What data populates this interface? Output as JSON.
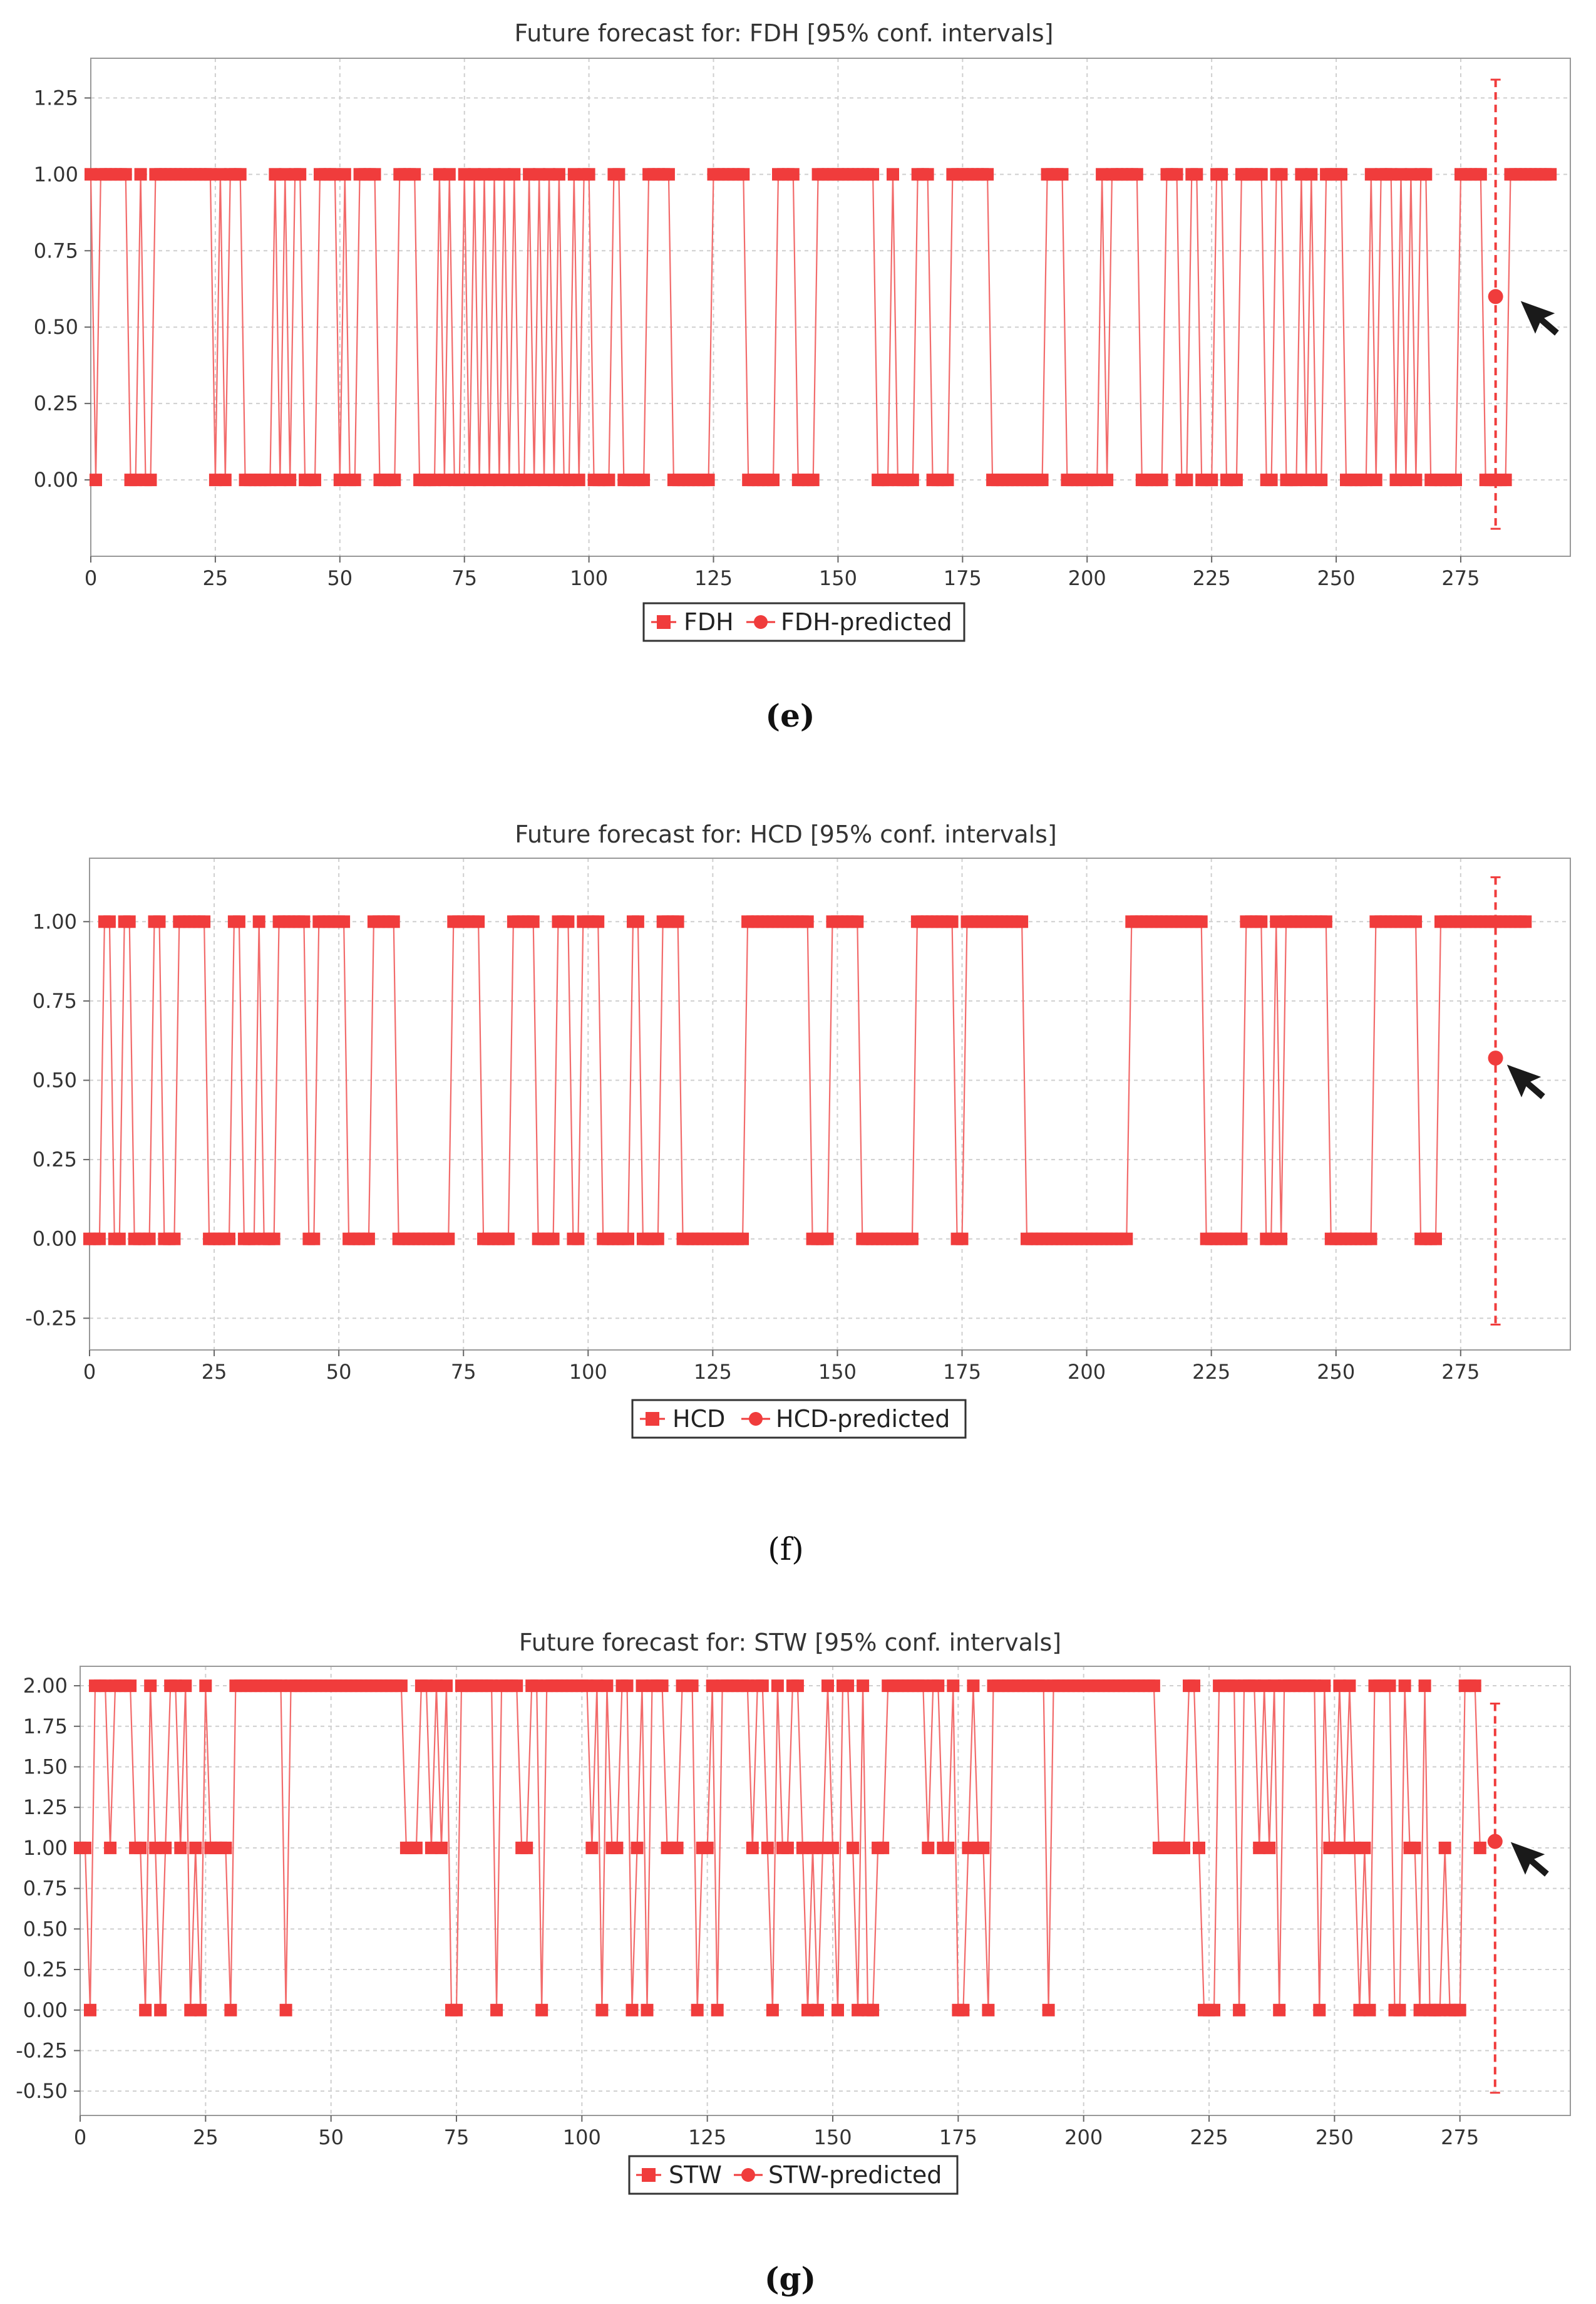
{
  "colors": {
    "series": "#f03c3c",
    "series_line": "#f26a6a",
    "grid": "#cfcfcf",
    "axis": "#666666",
    "text": "#333333",
    "cursor": "#1a1a1a"
  },
  "icons": {
    "cursor": "mouse-pointer-icon"
  },
  "chart_data": [
    {
      "id": "FDH",
      "type": "line",
      "title": "Future forecast for: FDH [95% conf. intervals]",
      "caption": "(e)",
      "xlabel": "",
      "ylabel": "",
      "xlim": [
        0,
        297
      ],
      "ylim": [
        -0.25,
        1.38
      ],
      "grid": true,
      "legend_position": "bottom-center",
      "x_ticks": [
        0,
        25,
        50,
        75,
        100,
        125,
        150,
        175,
        200,
        225,
        250,
        275
      ],
      "y_ticks": [
        0.0,
        0.25,
        0.5,
        0.75,
        1.0,
        1.25
      ],
      "y_tick_labels": [
        "0.00",
        "0.25",
        "0.50",
        "0.75",
        "1.00",
        "1.25"
      ],
      "series": [
        {
          "name": "FDH",
          "marker": "square",
          "values": [
            1,
            0,
            1,
            1,
            1,
            1,
            1,
            1,
            0,
            0,
            1,
            0,
            0,
            1,
            1,
            1,
            1,
            1,
            1,
            1,
            1,
            1,
            1,
            1,
            1,
            0,
            1,
            0,
            1,
            1,
            1,
            0,
            0,
            0,
            0,
            0,
            0,
            1,
            0,
            1,
            0,
            1,
            1,
            0,
            0,
            0,
            1,
            1,
            1,
            1,
            0,
            1,
            0,
            0,
            1,
            1,
            1,
            1,
            0,
            0,
            0,
            0,
            1,
            1,
            1,
            1,
            0,
            0,
            0,
            0,
            1,
            0,
            1,
            0,
            0,
            1,
            0,
            1,
            0,
            1,
            0,
            1,
            0,
            1,
            0,
            1,
            0,
            0,
            1,
            0,
            1,
            0,
            1,
            0,
            1,
            0,
            0,
            1,
            0,
            1,
            1,
            0,
            0,
            0,
            0,
            1,
            1,
            0,
            0,
            0,
            0,
            0,
            1,
            1,
            1,
            1,
            1,
            0,
            0,
            0,
            0,
            0,
            0,
            0,
            0,
            1,
            1,
            1,
            1,
            1,
            1,
            1,
            0,
            0,
            0,
            0,
            0,
            0,
            1,
            1,
            1,
            1,
            0,
            0,
            0,
            0,
            1,
            1,
            1,
            1,
            1,
            1,
            1,
            1,
            1,
            1,
            1,
            1,
            0,
            0,
            0,
            1,
            0,
            0,
            0,
            0,
            1,
            1,
            1,
            0,
            0,
            0,
            0,
            1,
            1,
            1,
            1,
            1,
            1,
            1,
            1,
            0,
            0,
            0,
            0,
            0,
            0,
            0,
            0,
            0,
            0,
            0,
            1,
            1,
            1,
            1,
            0,
            0,
            0,
            0,
            0,
            0,
            0,
            1,
            0,
            1,
            1,
            1,
            1,
            1,
            1,
            0,
            0,
            0,
            0,
            0,
            1,
            1,
            1,
            0,
            0,
            1,
            1,
            0,
            0,
            0,
            1,
            1,
            0,
            0,
            0,
            1,
            1,
            1,
            1,
            1,
            0,
            0,
            1,
            1,
            0,
            0,
            0,
            1,
            0,
            1,
            0,
            0,
            1,
            1,
            1,
            1,
            0,
            0,
            0,
            0,
            0,
            1,
            0,
            1,
            1,
            1,
            0,
            1,
            0,
            1,
            0,
            1,
            1,
            0,
            0,
            0,
            0,
            0,
            0,
            1,
            1,
            1,
            1,
            1,
            0,
            0,
            0,
            0,
            0,
            1,
            1,
            1,
            1,
            1,
            1,
            1,
            1,
            1
          ]
        },
        {
          "name": "FDH-predicted",
          "marker": "circle",
          "x": [
            282
          ],
          "values": [
            0.6
          ],
          "lower": [
            -0.16
          ],
          "upper": [
            1.31
          ]
        }
      ]
    },
    {
      "id": "HCD",
      "type": "line",
      "title": "Future forecast for: HCD [95% conf. intervals]",
      "caption": "(f)",
      "xlabel": "",
      "ylabel": "",
      "xlim": [
        0,
        297
      ],
      "ylim": [
        -0.35,
        1.2
      ],
      "grid": true,
      "legend_position": "bottom-center",
      "x_ticks": [
        0,
        25,
        50,
        75,
        100,
        125,
        150,
        175,
        200,
        225,
        250,
        275
      ],
      "y_ticks": [
        -0.25,
        0.0,
        0.25,
        0.5,
        0.75,
        1.0
      ],
      "y_tick_labels": [
        "-0.25",
        "0.00",
        "0.25",
        "0.50",
        "0.75",
        "1.00"
      ],
      "series": [
        {
          "name": "HCD",
          "marker": "square",
          "values": [
            0,
            0,
            0,
            1,
            1,
            0,
            0,
            1,
            1,
            0,
            0,
            0,
            0,
            1,
            1,
            0,
            0,
            0,
            1,
            1,
            1,
            1,
            1,
            1,
            0,
            0,
            0,
            0,
            0,
            1,
            1,
            0,
            0,
            0,
            1,
            0,
            0,
            0,
            1,
            1,
            1,
            1,
            1,
            1,
            0,
            0,
            1,
            1,
            1,
            1,
            1,
            1,
            0,
            0,
            0,
            0,
            0,
            1,
            1,
            1,
            1,
            1,
            0,
            0,
            0,
            0,
            0,
            0,
            0,
            0,
            0,
            0,
            0,
            1,
            1,
            1,
            1,
            1,
            1,
            0,
            0,
            0,
            0,
            0,
            0,
            1,
            1,
            1,
            1,
            1,
            0,
            0,
            0,
            0,
            1,
            1,
            1,
            0,
            0,
            1,
            1,
            1,
            1,
            0,
            0,
            0,
            0,
            0,
            0,
            1,
            1,
            0,
            0,
            0,
            0,
            1,
            1,
            1,
            1,
            0,
            0,
            0,
            0,
            0,
            0,
            0,
            0,
            0,
            0,
            0,
            0,
            0,
            1,
            1,
            1,
            1,
            1,
            1,
            1,
            1,
            1,
            1,
            1,
            1,
            1,
            0,
            0,
            0,
            0,
            1,
            1,
            1,
            1,
            1,
            1,
            0,
            0,
            0,
            0,
            0,
            0,
            0,
            0,
            0,
            0,
            0,
            1,
            1,
            1,
            1,
            1,
            1,
            1,
            1,
            0,
            0,
            1,
            1,
            1,
            1,
            1,
            1,
            1,
            1,
            1,
            1,
            1,
            1,
            0,
            0,
            0,
            0,
            0,
            0,
            0,
            0,
            0,
            0,
            0,
            0,
            0,
            0,
            0,
            0,
            0,
            0,
            0,
            0,
            0,
            1,
            1,
            1,
            1,
            1,
            1,
            1,
            1,
            1,
            1,
            1,
            1,
            1,
            1,
            1,
            0,
            0,
            0,
            0,
            0,
            0,
            0,
            0,
            1,
            1,
            1,
            1,
            0,
            0,
            1,
            0,
            1,
            1,
            1,
            1,
            1,
            1,
            1,
            1,
            1,
            0,
            0,
            0,
            0,
            0,
            0,
            0,
            0,
            0,
            1,
            1,
            1,
            1,
            1,
            1,
            1,
            1,
            1,
            0,
            0,
            0,
            0,
            1,
            1,
            1,
            1,
            1,
            1,
            1,
            1,
            1,
            1,
            1,
            1,
            1,
            1,
            1,
            1,
            1,
            1
          ]
        },
        {
          "name": "HCD-predicted",
          "marker": "circle",
          "x": [
            282
          ],
          "values": [
            0.57
          ],
          "lower": [
            -0.27
          ],
          "upper": [
            1.14
          ]
        }
      ]
    },
    {
      "id": "STW",
      "type": "line",
      "title": "Future forecast for: STW [95% conf. intervals]",
      "caption": "(g)",
      "xlabel": "",
      "ylabel": "",
      "xlim": [
        0,
        297
      ],
      "ylim": [
        -0.65,
        2.12
      ],
      "grid": true,
      "legend_position": "bottom-center",
      "x_ticks": [
        0,
        25,
        50,
        75,
        100,
        125,
        150,
        175,
        200,
        225,
        250,
        275
      ],
      "y_ticks": [
        -0.5,
        -0.25,
        0.0,
        0.25,
        0.5,
        0.75,
        1.0,
        1.25,
        1.5,
        1.75,
        2.0
      ],
      "y_tick_labels": [
        "-0.50",
        "-0.25",
        "0.00",
        "0.25",
        "0.50",
        "0.75",
        "1.00",
        "1.25",
        "1.50",
        "1.75",
        "2.00"
      ],
      "series": [
        {
          "name": "STW",
          "marker": "square",
          "values": [
            1,
            1,
            0,
            2,
            2,
            2,
            1,
            2,
            2,
            2,
            2,
            1,
            1,
            0,
            2,
            1,
            0,
            1,
            2,
            2,
            1,
            2,
            0,
            1,
            0,
            2,
            1,
            1,
            1,
            1,
            0,
            2,
            2,
            2,
            2,
            2,
            2,
            2,
            2,
            2,
            2,
            0,
            2,
            2,
            2,
            2,
            2,
            2,
            2,
            2,
            2,
            2,
            2,
            2,
            2,
            2,
            2,
            2,
            2,
            2,
            2,
            2,
            2,
            2,
            2,
            1,
            1,
            1,
            2,
            2,
            1,
            2,
            1,
            2,
            0,
            0,
            2,
            2,
            2,
            2,
            2,
            2,
            2,
            0,
            2,
            2,
            2,
            2,
            1,
            1,
            2,
            2,
            0,
            2,
            2,
            2,
            2,
            2,
            2,
            2,
            2,
            2,
            1,
            2,
            0,
            2,
            1,
            1,
            2,
            2,
            0,
            1,
            2,
            0,
            2,
            2,
            2,
            1,
            1,
            1,
            2,
            2,
            2,
            0,
            1,
            1,
            2,
            0,
            2,
            2,
            2,
            2,
            2,
            2,
            1,
            2,
            2,
            1,
            0,
            2,
            1,
            1,
            2,
            2,
            1,
            0,
            1,
            0,
            1,
            2,
            1,
            0,
            2,
            2,
            1,
            0,
            2,
            0,
            0,
            1,
            1,
            2,
            2,
            2,
            2,
            2,
            2,
            2,
            2,
            1,
            2,
            2,
            1,
            1,
            2,
            0,
            0,
            1,
            2,
            1,
            1,
            0,
            2,
            2,
            2,
            2,
            2,
            2,
            2,
            2,
            2,
            2,
            2,
            0,
            2,
            2,
            2,
            2,
            2,
            2,
            2,
            2,
            2,
            2,
            2,
            2,
            2,
            2,
            2,
            2,
            2,
            2,
            2,
            2,
            2,
            1,
            1,
            1,
            1,
            1,
            1,
            2,
            2,
            1,
            0,
            0,
            0,
            2,
            2,
            2,
            2,
            0,
            2,
            2,
            2,
            1,
            2,
            1,
            2,
            0,
            2,
            2,
            2,
            2,
            2,
            2,
            2,
            0,
            2,
            1,
            1,
            2,
            1,
            2,
            1,
            0,
            1,
            0,
            2,
            2,
            2,
            2,
            0,
            0,
            2,
            1,
            1,
            0,
            2,
            0,
            0,
            0,
            1,
            0,
            0,
            0,
            2,
            2,
            2,
            1
          ]
        },
        {
          "name": "STW-predicted",
          "marker": "circle",
          "x": [
            282
          ],
          "values": [
            1.04
          ],
          "lower": [
            -0.51
          ],
          "upper": [
            1.89
          ]
        }
      ]
    }
  ]
}
